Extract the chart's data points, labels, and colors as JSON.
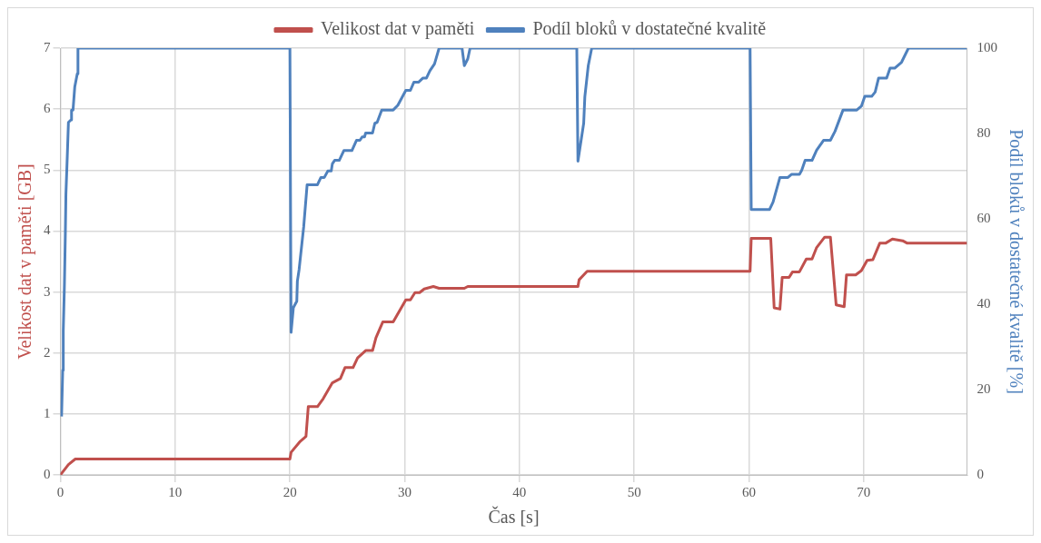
{
  "chart_data": {
    "type": "line",
    "xlabel": "Čas [s]",
    "ylabel": "Velikost dat v paměti [GB]",
    "y2label": "Podíl bloků v dostatečné kvalitě [%]",
    "xlim": [
      0,
      79
    ],
    "xticks": [
      0,
      10,
      20,
      30,
      40,
      50,
      60,
      70
    ],
    "ylim": [
      0,
      7
    ],
    "yticks": [
      0,
      1,
      2,
      3,
      4,
      5,
      6,
      7
    ],
    "y2lim": [
      0,
      100
    ],
    "y2ticks": [
      0,
      20,
      40,
      60,
      80,
      100
    ],
    "grid": true,
    "legend": "top",
    "marker": "none",
    "line_style": "solid",
    "series": [
      {
        "name": "Velikost dat v paměti",
        "color": "#c0504d",
        "x": [
          0,
          0.7,
          1.3,
          20,
          20.1,
          20.9,
          21.4,
          21.6,
          22.4,
          22.9,
          23.3,
          23.7,
          24.4,
          24.8,
          25.5,
          25.9,
          26.6,
          27.2,
          27.5,
          28.1,
          29.0,
          30.1,
          30.5,
          30.9,
          31.3,
          31.7,
          32.5,
          33.0,
          35.2,
          35.5,
          45.1,
          45.2,
          45.9,
          60.1,
          60.2,
          61.9,
          62.2,
          62.7,
          62.9,
          63.5,
          63.8,
          64.4,
          65.0,
          65.5,
          65.9,
          66.6,
          67.1,
          67.6,
          68.3,
          68.5,
          69.3,
          69.8,
          70.3,
          70.8,
          71.4,
          71.9,
          72.5,
          73.4,
          73.8,
          79
        ],
        "values": [
          0,
          0.17,
          0.26,
          0.26,
          0.37,
          0.55,
          0.63,
          1.12,
          1.12,
          1.25,
          1.38,
          1.51,
          1.58,
          1.76,
          1.76,
          1.92,
          2.04,
          2.04,
          2.25,
          2.51,
          2.51,
          2.87,
          2.87,
          2.99,
          2.99,
          3.05,
          3.09,
          3.06,
          3.06,
          3.09,
          3.09,
          3.2,
          3.34,
          3.34,
          3.88,
          3.88,
          2.74,
          2.72,
          3.24,
          3.24,
          3.33,
          3.33,
          3.54,
          3.54,
          3.73,
          3.9,
          3.9,
          2.79,
          2.76,
          3.28,
          3.28,
          3.35,
          3.52,
          3.53,
          3.8,
          3.8,
          3.87,
          3.84,
          3.8,
          3.8
        ]
      },
      {
        "name": "Podíl bloků v dostatečné kvalitě",
        "color": "#4f81bd",
        "axis": "y2",
        "x": [
          0.1,
          0.2,
          0.25,
          0.35,
          0.43,
          0.48,
          0.6,
          0.7,
          0.92,
          0.97,
          1.1,
          1.25,
          1.47,
          1.53,
          20,
          20.1,
          20.3,
          20.6,
          20.65,
          20.8,
          21.0,
          21.2,
          21.5,
          22.4,
          22.7,
          23.0,
          23.3,
          23.6,
          23.7,
          23.9,
          24.3,
          24.7,
          25.4,
          25.8,
          26.1,
          26.3,
          26.5,
          26.6,
          27.2,
          27.4,
          27.6,
          28.0,
          29.0,
          29.4,
          30.1,
          30.5,
          30.8,
          31.2,
          31.6,
          31.9,
          32.2,
          32.6,
          33.0,
          35.0,
          35.2,
          35.5,
          35.7,
          45.0,
          45.1,
          45.6,
          45.7,
          46.0,
          46.3,
          60.1,
          60.2,
          61.8,
          62.1,
          62.7,
          63.4,
          63.7,
          64.4,
          64.6,
          64.9,
          65.5,
          65.9,
          66.5,
          67.1,
          67.5,
          68.2,
          69.4,
          69.8,
          70.1,
          70.7,
          71.0,
          71.3,
          72.0,
          72.3,
          72.7,
          73.3,
          73.9,
          79
        ],
        "values": [
          13.7,
          24.5,
          33.8,
          44.6,
          56.6,
          65.8,
          74.7,
          82.6,
          83.2,
          85.5,
          85.5,
          90.9,
          94.0,
          100,
          100,
          33.4,
          39.2,
          40.7,
          45.4,
          48.1,
          53.1,
          58.1,
          68.0,
          68.0,
          69.7,
          69.7,
          71.2,
          71.2,
          72.9,
          73.7,
          73.7,
          76.0,
          76.0,
          78.4,
          78.4,
          79.2,
          79.2,
          80.1,
          80.1,
          82.4,
          82.6,
          85.5,
          85.5,
          86.6,
          90.1,
          90.1,
          92.0,
          92.0,
          93.0,
          93.0,
          94.7,
          96.3,
          100,
          100,
          95.9,
          97.5,
          100,
          100,
          73.5,
          82.4,
          88.6,
          95.9,
          100,
          100,
          62.2,
          62.2,
          63.9,
          69.7,
          69.7,
          70.4,
          70.4,
          71.4,
          73.7,
          73.7,
          76.1,
          78.4,
          78.4,
          80.5,
          85.5,
          85.5,
          86.4,
          88.7,
          88.7,
          89.7,
          93.0,
          93.0,
          95.3,
          95.3,
          96.7,
          100,
          100
        ]
      }
    ]
  }
}
